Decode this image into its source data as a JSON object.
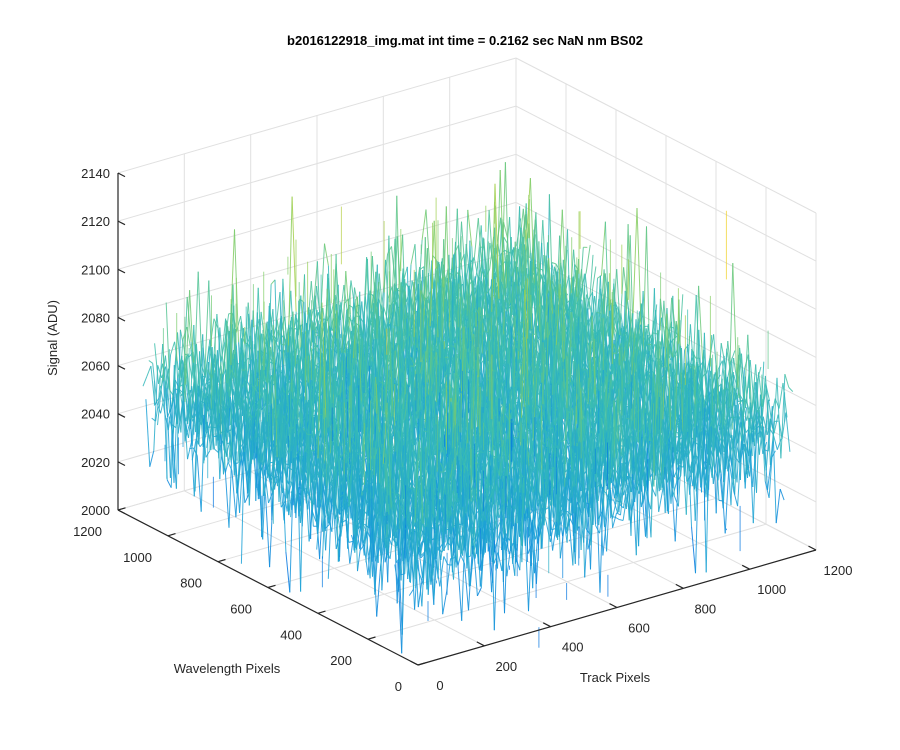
{
  "chart_data": {
    "type": "surface",
    "title": "b2016122918_img.mat int time = 0.2162 sec  NaN nm BS02",
    "xlabel": "Track Pixels",
    "ylabel": "Wavelength Pixels",
    "zlabel": "Signal (ADU)",
    "xlim": [
      0,
      1200
    ],
    "ylim": [
      0,
      1200
    ],
    "zlim": [
      2000,
      2140
    ],
    "x_ticks": [
      "0",
      "200",
      "400",
      "600",
      "800",
      "1000",
      "1200"
    ],
    "y_ticks": [
      "0",
      "200",
      "400",
      "600",
      "800",
      "1000",
      "1200"
    ],
    "z_ticks": [
      "2000",
      "2020",
      "2040",
      "2060",
      "2080",
      "2100",
      "2120",
      "2140"
    ],
    "grid": true,
    "colormap": [
      "#0072e0",
      "#1aa0d8",
      "#3cbfb0",
      "#8ccf5a",
      "#f0d020"
    ],
    "data_extent": {
      "x": [
        0,
        1130
      ],
      "y": [
        0,
        1100
      ]
    },
    "signal_range": [
      2000,
      2140
    ]
  }
}
